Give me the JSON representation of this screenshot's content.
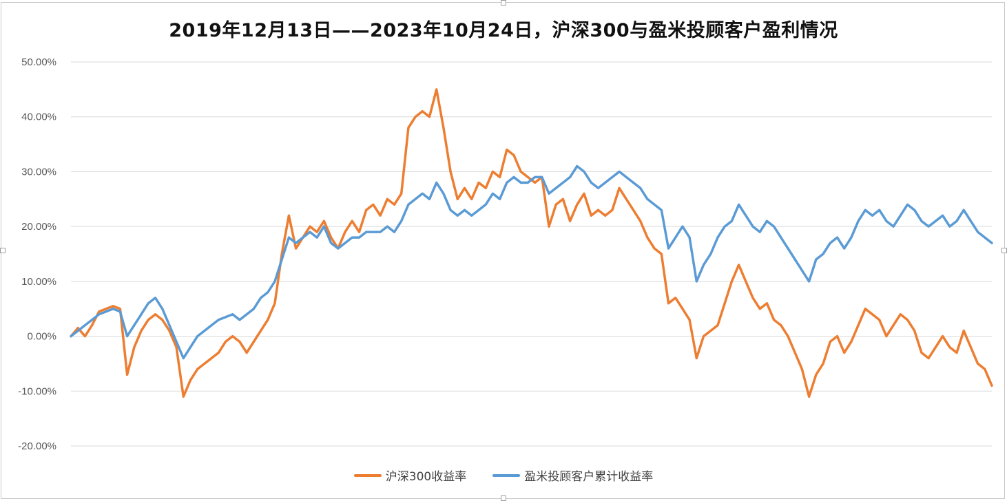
{
  "chart_data": {
    "type": "line",
    "title": "2019年12月13日——2023年10月24日，沪深300与盈米投顾客户盈利情况",
    "ylim": [
      -20,
      50
    ],
    "yticks": [
      "50.00%",
      "40.00%",
      "30.00%",
      "20.00%",
      "10.00%",
      "0.00%",
      "-10.00%",
      "-20.00%"
    ],
    "ytick_values": [
      50,
      40,
      30,
      20,
      10,
      0,
      -10,
      -20
    ],
    "grid": true,
    "legend_position": "bottom",
    "x_range": [
      "2019-12-13",
      "2023-10-24"
    ],
    "series": [
      {
        "name": "沪深300收益率",
        "color": "#ED7D31",
        "points": [
          [
            0,
            0
          ],
          [
            1,
            1.5
          ],
          [
            2,
            0
          ],
          [
            3,
            2
          ],
          [
            4,
            4.5
          ],
          [
            5,
            5
          ],
          [
            6,
            5.5
          ],
          [
            7,
            5
          ],
          [
            8,
            -7
          ],
          [
            9,
            -2
          ],
          [
            10,
            1
          ],
          [
            11,
            3
          ],
          [
            12,
            4
          ],
          [
            13,
            3
          ],
          [
            14,
            1
          ],
          [
            15,
            -2
          ],
          [
            16,
            -11
          ],
          [
            17,
            -8
          ],
          [
            18,
            -6
          ],
          [
            19,
            -5
          ],
          [
            20,
            -4
          ],
          [
            21,
            -3
          ],
          [
            22,
            -1
          ],
          [
            23,
            0
          ],
          [
            24,
            -1
          ],
          [
            25,
            -3
          ],
          [
            26,
            -1
          ],
          [
            27,
            1
          ],
          [
            28,
            3
          ],
          [
            29,
            6
          ],
          [
            30,
            15
          ],
          [
            31,
            22
          ],
          [
            32,
            16
          ],
          [
            33,
            18
          ],
          [
            34,
            20
          ],
          [
            35,
            19
          ],
          [
            36,
            21
          ],
          [
            37,
            18
          ],
          [
            38,
            16
          ],
          [
            39,
            19
          ],
          [
            40,
            21
          ],
          [
            41,
            19
          ],
          [
            42,
            23
          ],
          [
            43,
            24
          ],
          [
            44,
            22
          ],
          [
            45,
            25
          ],
          [
            46,
            24
          ],
          [
            47,
            26
          ],
          [
            48,
            38
          ],
          [
            49,
            40
          ],
          [
            50,
            41
          ],
          [
            51,
            40
          ],
          [
            52,
            45
          ],
          [
            53,
            38
          ],
          [
            54,
            30
          ],
          [
            55,
            25
          ],
          [
            56,
            27
          ],
          [
            57,
            25
          ],
          [
            58,
            28
          ],
          [
            59,
            27
          ],
          [
            60,
            30
          ],
          [
            61,
            29
          ],
          [
            62,
            34
          ],
          [
            63,
            33
          ],
          [
            64,
            30
          ],
          [
            65,
            29
          ],
          [
            66,
            28
          ],
          [
            67,
            29
          ],
          [
            68,
            20
          ],
          [
            69,
            24
          ],
          [
            70,
            25
          ],
          [
            71,
            21
          ],
          [
            72,
            24
          ],
          [
            73,
            26
          ],
          [
            74,
            22
          ],
          [
            75,
            23
          ],
          [
            76,
            22
          ],
          [
            77,
            23
          ],
          [
            78,
            27
          ],
          [
            79,
            25
          ],
          [
            80,
            23
          ],
          [
            81,
            21
          ],
          [
            82,
            18
          ],
          [
            83,
            16
          ],
          [
            84,
            15
          ],
          [
            85,
            6
          ],
          [
            86,
            7
          ],
          [
            87,
            5
          ],
          [
            88,
            3
          ],
          [
            89,
            -4
          ],
          [
            90,
            0
          ],
          [
            91,
            1
          ],
          [
            92,
            2
          ],
          [
            93,
            6
          ],
          [
            94,
            10
          ],
          [
            95,
            13
          ],
          [
            96,
            10
          ],
          [
            97,
            7
          ],
          [
            98,
            5
          ],
          [
            99,
            6
          ],
          [
            100,
            3
          ],
          [
            101,
            2
          ],
          [
            102,
            0
          ],
          [
            103,
            -3
          ],
          [
            104,
            -6
          ],
          [
            105,
            -11
          ],
          [
            106,
            -7
          ],
          [
            107,
            -5
          ],
          [
            108,
            -1
          ],
          [
            109,
            0
          ],
          [
            110,
            -3
          ],
          [
            111,
            -1
          ],
          [
            112,
            2
          ],
          [
            113,
            5
          ],
          [
            114,
            4
          ],
          [
            115,
            3
          ],
          [
            116,
            0
          ],
          [
            117,
            2
          ],
          [
            118,
            4
          ],
          [
            119,
            3
          ],
          [
            120,
            1
          ],
          [
            121,
            -3
          ],
          [
            122,
            -4
          ],
          [
            123,
            -2
          ],
          [
            124,
            0
          ],
          [
            125,
            -2
          ],
          [
            126,
            -3
          ],
          [
            127,
            1
          ],
          [
            128,
            -2
          ],
          [
            129,
            -5
          ],
          [
            130,
            -6
          ],
          [
            131,
            -9
          ]
        ]
      },
      {
        "name": "盈米投顾客户累计收益率",
        "color": "#5B9BD5",
        "points": [
          [
            0,
            0
          ],
          [
            1,
            1
          ],
          [
            2,
            2
          ],
          [
            3,
            3
          ],
          [
            4,
            4
          ],
          [
            5,
            4.5
          ],
          [
            6,
            5
          ],
          [
            7,
            4.5
          ],
          [
            8,
            0
          ],
          [
            9,
            2
          ],
          [
            10,
            4
          ],
          [
            11,
            6
          ],
          [
            12,
            7
          ],
          [
            13,
            5
          ],
          [
            14,
            2
          ],
          [
            15,
            -1
          ],
          [
            16,
            -4
          ],
          [
            17,
            -2
          ],
          [
            18,
            0
          ],
          [
            19,
            1
          ],
          [
            20,
            2
          ],
          [
            21,
            3
          ],
          [
            22,
            3.5
          ],
          [
            23,
            4
          ],
          [
            24,
            3
          ],
          [
            25,
            4
          ],
          [
            26,
            5
          ],
          [
            27,
            7
          ],
          [
            28,
            8
          ],
          [
            29,
            10
          ],
          [
            30,
            14
          ],
          [
            31,
            18
          ],
          [
            32,
            17
          ],
          [
            33,
            18
          ],
          [
            34,
            19
          ],
          [
            35,
            18
          ],
          [
            36,
            20
          ],
          [
            37,
            17
          ],
          [
            38,
            16
          ],
          [
            39,
            17
          ],
          [
            40,
            18
          ],
          [
            41,
            18
          ],
          [
            42,
            19
          ],
          [
            43,
            19
          ],
          [
            44,
            19
          ],
          [
            45,
            20
          ],
          [
            46,
            19
          ],
          [
            47,
            21
          ],
          [
            48,
            24
          ],
          [
            49,
            25
          ],
          [
            50,
            26
          ],
          [
            51,
            25
          ],
          [
            52,
            28
          ],
          [
            53,
            26
          ],
          [
            54,
            23
          ],
          [
            55,
            22
          ],
          [
            56,
            23
          ],
          [
            57,
            22
          ],
          [
            58,
            23
          ],
          [
            59,
            24
          ],
          [
            60,
            26
          ],
          [
            61,
            25
          ],
          [
            62,
            28
          ],
          [
            63,
            29
          ],
          [
            64,
            28
          ],
          [
            65,
            28
          ],
          [
            66,
            29
          ],
          [
            67,
            29
          ],
          [
            68,
            26
          ],
          [
            69,
            27
          ],
          [
            70,
            28
          ],
          [
            71,
            29
          ],
          [
            72,
            31
          ],
          [
            73,
            30
          ],
          [
            74,
            28
          ],
          [
            75,
            27
          ],
          [
            76,
            28
          ],
          [
            77,
            29
          ],
          [
            78,
            30
          ],
          [
            79,
            29
          ],
          [
            80,
            28
          ],
          [
            81,
            27
          ],
          [
            82,
            25
          ],
          [
            83,
            24
          ],
          [
            84,
            23
          ],
          [
            85,
            16
          ],
          [
            86,
            18
          ],
          [
            87,
            20
          ],
          [
            88,
            18
          ],
          [
            89,
            10
          ],
          [
            90,
            13
          ],
          [
            91,
            15
          ],
          [
            92,
            18
          ],
          [
            93,
            20
          ],
          [
            94,
            21
          ],
          [
            95,
            24
          ],
          [
            96,
            22
          ],
          [
            97,
            20
          ],
          [
            98,
            19
          ],
          [
            99,
            21
          ],
          [
            100,
            20
          ],
          [
            101,
            18
          ],
          [
            102,
            16
          ],
          [
            103,
            14
          ],
          [
            104,
            12
          ],
          [
            105,
            10
          ],
          [
            106,
            14
          ],
          [
            107,
            15
          ],
          [
            108,
            17
          ],
          [
            109,
            18
          ],
          [
            110,
            16
          ],
          [
            111,
            18
          ],
          [
            112,
            21
          ],
          [
            113,
            23
          ],
          [
            114,
            22
          ],
          [
            115,
            23
          ],
          [
            116,
            21
          ],
          [
            117,
            20
          ],
          [
            118,
            22
          ],
          [
            119,
            24
          ],
          [
            120,
            23
          ],
          [
            121,
            21
          ],
          [
            122,
            20
          ],
          [
            123,
            21
          ],
          [
            124,
            22
          ],
          [
            125,
            20
          ],
          [
            126,
            21
          ],
          [
            127,
            23
          ],
          [
            128,
            21
          ],
          [
            129,
            19
          ],
          [
            130,
            18
          ],
          [
            131,
            17
          ]
        ]
      }
    ]
  }
}
